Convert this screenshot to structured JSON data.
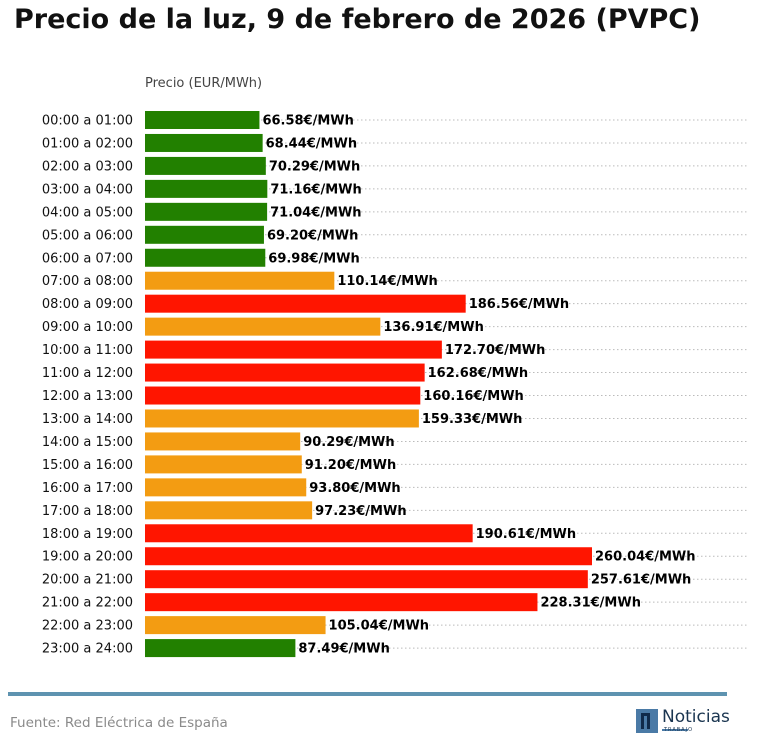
{
  "title": "Precio de la luz, 9 de febrero de 2026 (PVPC)",
  "footer": {
    "source": "Fuente: Red Eléctrica de España",
    "logo_text": "Noticias",
    "logo_subtext": "TRABAJO"
  },
  "colors": {
    "low": "#228000",
    "mid": "#f39c12",
    "high": "#ff1500",
    "grid": "#bbbbbb",
    "divider": "#5e93b0"
  },
  "chart_data": {
    "type": "bar",
    "orientation": "horizontal",
    "title": "Precio de la luz, 9 de febrero de 2026 (PVPC)",
    "xlabel": "Precio (EUR/MWh)",
    "ylabel": "",
    "xlim": [
      0,
      260.04
    ],
    "grid": true,
    "value_suffix": "€/MWh",
    "categories": [
      "00:00 a 01:00",
      "01:00 a 02:00",
      "02:00 a 03:00",
      "03:00 a 04:00",
      "04:00 a 05:00",
      "05:00 a 06:00",
      "06:00 a 07:00",
      "07:00 a 08:00",
      "08:00 a 09:00",
      "09:00 a 10:00",
      "10:00 a 11:00",
      "11:00 a 12:00",
      "12:00 a 13:00",
      "13:00 a 14:00",
      "14:00 a 15:00",
      "15:00 a 16:00",
      "16:00 a 17:00",
      "17:00 a 18:00",
      "18:00 a 19:00",
      "19:00 a 20:00",
      "20:00 a 21:00",
      "21:00 a 22:00",
      "22:00 a 23:00",
      "23:00 a 24:00"
    ],
    "values": [
      66.58,
      68.44,
      70.29,
      71.16,
      71.04,
      69.2,
      69.98,
      110.14,
      186.56,
      136.91,
      172.7,
      162.68,
      160.16,
      159.33,
      90.29,
      91.2,
      93.8,
      97.23,
      190.61,
      260.04,
      257.61,
      228.31,
      105.04,
      87.49
    ],
    "labels": [
      "66.58€/MWh",
      "68.44€/MWh",
      "70.29€/MWh",
      "71.16€/MWh",
      "71.04€/MWh",
      "69.20€/MWh",
      "69.98€/MWh",
      "110.14€/MWh",
      "186.56€/MWh",
      "136.91€/MWh",
      "172.70€/MWh",
      "162.68€/MWh",
      "160.16€/MWh",
      "159.33€/MWh",
      "90.29€/MWh",
      "91.20€/MWh",
      "93.80€/MWh",
      "97.23€/MWh",
      "190.61€/MWh",
      "260.04€/MWh",
      "257.61€/MWh",
      "228.31€/MWh",
      "105.04€/MWh",
      "87.49€/MWh"
    ],
    "levels": [
      "low",
      "low",
      "low",
      "low",
      "low",
      "low",
      "low",
      "mid",
      "high",
      "mid",
      "high",
      "high",
      "high",
      "mid",
      "mid",
      "mid",
      "mid",
      "mid",
      "high",
      "high",
      "high",
      "high",
      "mid",
      "low"
    ]
  }
}
